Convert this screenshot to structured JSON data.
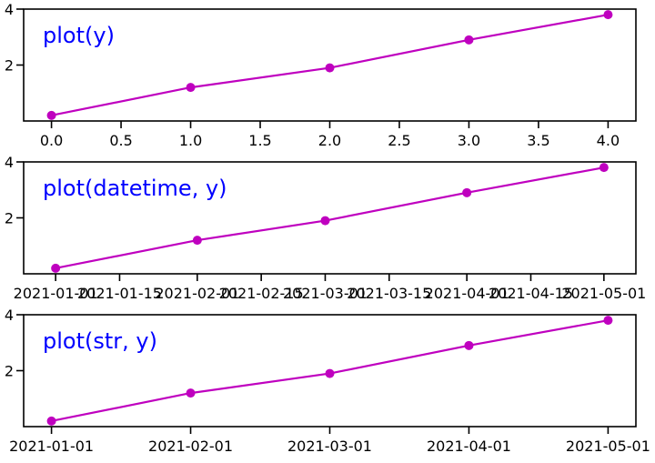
{
  "chart_data": [
    {
      "type": "line",
      "title": "plot(y)",
      "x": [
        0,
        1,
        2,
        3,
        4
      ],
      "y": [
        0.2,
        1.2,
        1.9,
        2.9,
        3.8
      ],
      "xlim": [
        -0.2,
        4.2
      ],
      "ylim": [
        0,
        4
      ],
      "x_ticks": [
        0,
        0.5,
        1,
        1.5,
        2,
        2.5,
        3,
        3.5,
        4
      ],
      "x_tick_labels": [
        "0.0",
        "0.5",
        "1.0",
        "1.5",
        "2.0",
        "2.5",
        "3.0",
        "3.5",
        "4.0"
      ],
      "y_ticks": [
        2,
        4
      ],
      "y_tick_labels": [
        "2",
        "4"
      ],
      "color": "#bf00bf",
      "title_color": "#0000ff",
      "grid": false,
      "markers": true
    },
    {
      "type": "line",
      "title": "plot(datetime, y)",
      "x": [
        "2021-01-01",
        "2021-02-01",
        "2021-03-01",
        "2021-04-01",
        "2021-05-01"
      ],
      "y": [
        0.2,
        1.2,
        1.9,
        2.9,
        3.8
      ],
      "xlim": [
        "2020-12-25",
        "2021-05-08"
      ],
      "ylim": [
        0,
        4
      ],
      "x_ticks": [
        "2021-01-01",
        "2021-01-15",
        "2021-02-01",
        "2021-02-15",
        "2021-03-01",
        "2021-03-15",
        "2021-04-01",
        "2021-04-15",
        "2021-05-01"
      ],
      "x_tick_labels": [
        "2021-01-01",
        "2021-01-15",
        "2021-02-01",
        "2021-02-15",
        "2021-03-01",
        "2021-03-15",
        "2021-04-01",
        "2021-04-15",
        "2021-05-01"
      ],
      "y_ticks": [
        2,
        4
      ],
      "y_tick_labels": [
        "2",
        "4"
      ],
      "color": "#bf00bf",
      "title_color": "#0000ff",
      "grid": false,
      "markers": true
    },
    {
      "type": "line",
      "title": "plot(str, y)",
      "categories": [
        "2021-01-01",
        "2021-02-01",
        "2021-03-01",
        "2021-04-01",
        "2021-05-01"
      ],
      "y": [
        0.2,
        1.2,
        1.9,
        2.9,
        3.8
      ],
      "ylim": [
        0,
        4
      ],
      "y_ticks": [
        2,
        4
      ],
      "y_tick_labels": [
        "2",
        "4"
      ],
      "color": "#bf00bf",
      "title_color": "#0000ff",
      "grid": false,
      "markers": true
    }
  ]
}
